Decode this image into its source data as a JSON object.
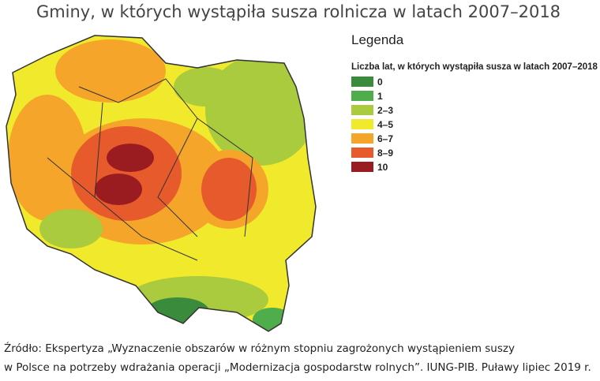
{
  "header": {
    "title": "Gminy, w których wystąpiła susza rolnicza w latach 2007–2018"
  },
  "legend": {
    "heading": "Legenda",
    "subtitle": "Liczba lat, w których wystąpiła susza w latach 2007–2018",
    "items": [
      {
        "label": "0",
        "color": "#3b8b3d"
      },
      {
        "label": "1",
        "color": "#4fae4b"
      },
      {
        "label": "2–3",
        "color": "#a9cb3d"
      },
      {
        "label": "4–5",
        "color": "#f0e92c"
      },
      {
        "label": "6–7",
        "color": "#f5a52a"
      },
      {
        "label": "8–9",
        "color": "#e75a2b"
      },
      {
        "label": "10",
        "color": "#9b1c20"
      }
    ]
  },
  "source": {
    "lines": [
      "Źródło: Ekspertyza „Wyznaczenie obszarów w różnym stopniu zagrożonych wystąpieniem suszy",
      "w Polsce na potrzeby wdrażania operacji „Modernizacja gospodarstw rolnych”. IUNG-PIB. Puławy lipiec 2019 r."
    ]
  }
}
